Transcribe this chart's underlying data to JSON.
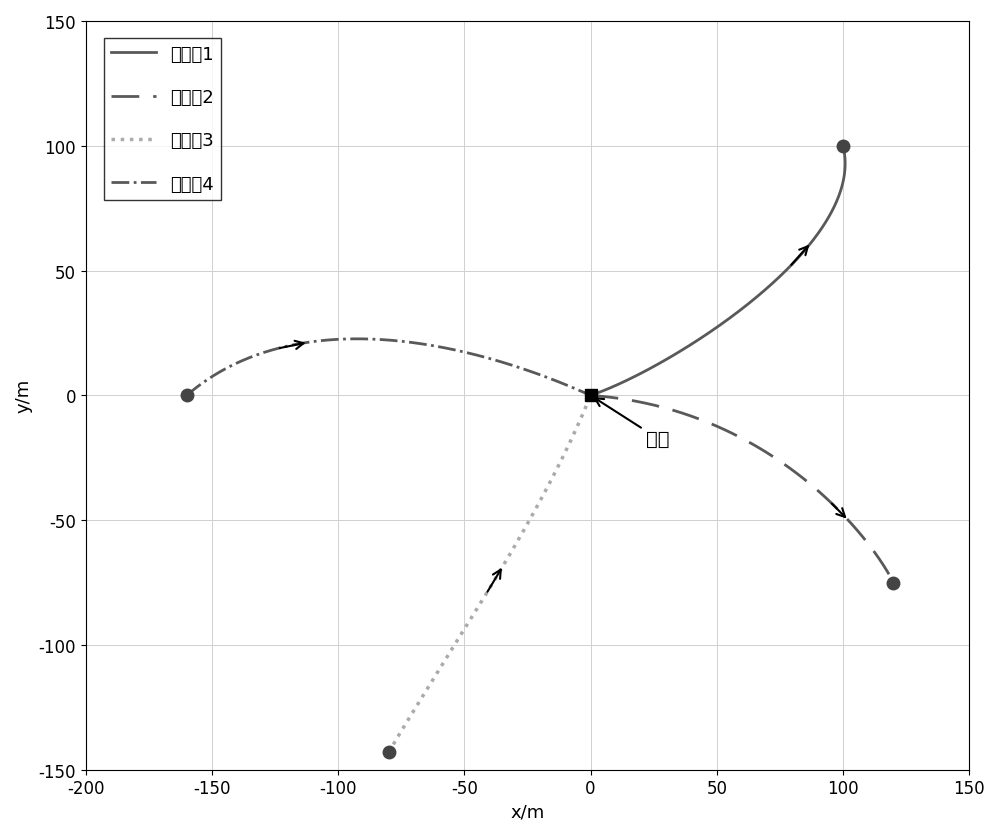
{
  "title": "",
  "xlabel": "x/m",
  "ylabel": "y/m",
  "xlim": [
    -200,
    150
  ],
  "ylim": [
    -150,
    150
  ],
  "xticks": [
    -200,
    -150,
    -100,
    -50,
    0,
    50,
    100,
    150
  ],
  "yticks": [
    -150,
    -100,
    -50,
    0,
    50,
    100,
    150
  ],
  "target": [
    0,
    0
  ],
  "target_label": "目标",
  "legend_labels": [
    "航行器1",
    "航行器2",
    "航行器3",
    "航行器4"
  ],
  "c1": "#595959",
  "c2": "#595959",
  "c3": "#aaaaaa",
  "c4": "#595959",
  "auv1_p0": [
    100,
    100
  ],
  "auv1_p1": [
    110,
    60
  ],
  "auv1_p2": [
    30,
    10
  ],
  "auv1_p3": [
    0,
    0
  ],
  "auv2_p0": [
    0,
    0
  ],
  "auv2_p1": [
    70,
    -5
  ],
  "auv2_p2": [
    110,
    -55
  ],
  "auv2_p3": [
    120,
    -75
  ],
  "auv3_p0": [
    -80,
    -143
  ],
  "auv3_p1": [
    -55,
    -100
  ],
  "auv3_p2": [
    -20,
    -50
  ],
  "auv3_p3": [
    0,
    0
  ],
  "auv4_p0": [
    -160,
    0
  ],
  "auv4_p1": [
    -120,
    35
  ],
  "auv4_p2": [
    -55,
    25
  ],
  "auv4_p3": [
    0,
    0
  ],
  "lw": 2.0,
  "markersize": 9,
  "figsize": [
    10.0,
    8.37
  ],
  "dpi": 100
}
